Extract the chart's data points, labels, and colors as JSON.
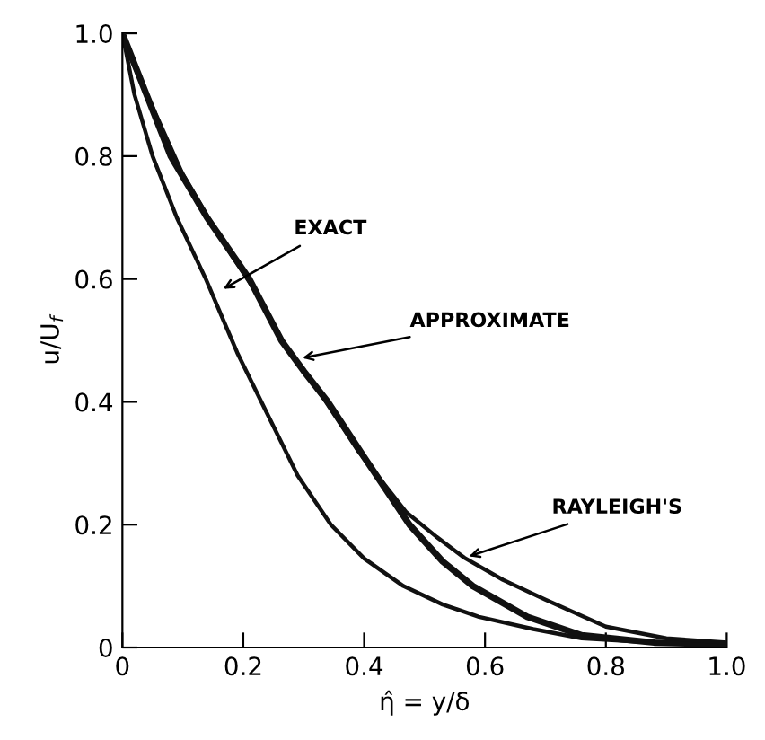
{
  "chart_data": {
    "type": "line",
    "xlabel": "η̂ = y/δ",
    "ylabel": "u/U$_{f}$",
    "xlim": [
      0,
      1
    ],
    "ylim": [
      0,
      1
    ],
    "xticks": [
      0,
      0.2,
      0.4,
      0.6,
      0.8,
      {
        "value": 1,
        "label": "1.0"
      }
    ],
    "yticks": [
      0,
      0.2,
      0.4,
      0.6,
      0.8,
      {
        "value": 1,
        "label": "1.0"
      }
    ],
    "grid": false,
    "marker": "none",
    "line_style": "solid",
    "series": [
      {
        "color": "#111111",
        "x": [
          0,
          0.02,
          0.05,
          0.09,
          0.138,
          0.19,
          0.23,
          0.29,
          0.345,
          0.4,
          0.465,
          0.53,
          0.59,
          0.68,
          0.76,
          0.88,
          1.0
        ],
        "values": [
          1.0,
          0.9,
          0.8,
          0.7,
          0.6,
          0.48,
          0.4,
          0.28,
          0.2,
          0.145,
          0.1,
          0.07,
          0.05,
          0.03,
          0.015,
          0.008,
          0.005
        ]
      },
      {
        "color": "#111111",
        "x": [
          0,
          0.04,
          0.08,
          0.14,
          0.21,
          0.263,
          0.3,
          0.34,
          0.4,
          0.475,
          0.53,
          0.58,
          0.67,
          0.76,
          0.88,
          1.0
        ],
        "values": [
          1.0,
          0.9,
          0.8,
          0.7,
          0.6,
          0.5,
          0.45,
          0.4,
          0.31,
          0.2,
          0.14,
          0.1,
          0.05,
          0.02,
          0.008,
          0.005
        ]
      },
      {
        "color": "#111111",
        "x": [
          0,
          0.05,
          0.1,
          0.16,
          0.22,
          0.27,
          0.33,
          0.39,
          0.47,
          0.52,
          0.566,
          0.63,
          0.7,
          0.8,
          0.9,
          1.0
        ],
        "values": [
          0.99,
          0.88,
          0.77,
          0.67,
          0.58,
          0.49,
          0.41,
          0.32,
          0.22,
          0.18,
          0.146,
          0.11,
          0.078,
          0.034,
          0.015,
          0.008
        ]
      }
    ],
    "annotations": [
      {
        "text": "EXACT",
        "x": 0.16,
        "y": 0.58
      },
      {
        "text": "APPROXIMATE",
        "x": 0.29,
        "y": 0.47
      },
      {
        "text": "RAYLEIGH'S",
        "x": 0.566,
        "y": 0.146
      }
    ]
  }
}
